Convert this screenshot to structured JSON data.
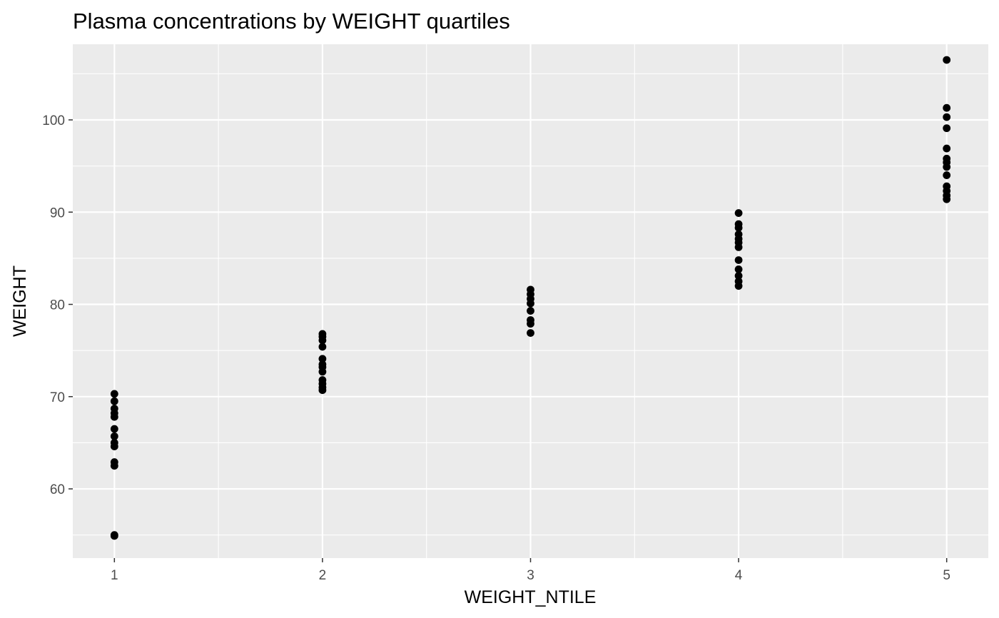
{
  "chart_data": {
    "type": "scatter",
    "title": "Plasma concentrations by WEIGHT quartiles",
    "xlabel": "WEIGHT_NTILE",
    "ylabel": "WEIGHT",
    "xlim": [
      0.8,
      5.2
    ],
    "ylim": [
      52.5,
      108.2
    ],
    "x_ticks": [
      1,
      2,
      3,
      4,
      5
    ],
    "x_tick_labels": [
      "1",
      "2",
      "3",
      "4",
      "5"
    ],
    "y_ticks": [
      60,
      70,
      80,
      90,
      100
    ],
    "y_tick_labels": [
      "60",
      "70",
      "80",
      "90",
      "100"
    ],
    "grid": true,
    "legend": "none",
    "colors": {
      "panel": "#ebebeb",
      "grid": "#ffffff",
      "point": "#000000"
    },
    "points": [
      {
        "x": 1,
        "y": 54.9
      },
      {
        "x": 1,
        "y": 55.0
      },
      {
        "x": 1,
        "y": 62.5
      },
      {
        "x": 1,
        "y": 62.9
      },
      {
        "x": 1,
        "y": 64.6
      },
      {
        "x": 1,
        "y": 65.0
      },
      {
        "x": 1,
        "y": 65.7
      },
      {
        "x": 1,
        "y": 66.5
      },
      {
        "x": 1,
        "y": 67.8
      },
      {
        "x": 1,
        "y": 68.2
      },
      {
        "x": 1,
        "y": 68.7
      },
      {
        "x": 1,
        "y": 69.5
      },
      {
        "x": 1,
        "y": 70.3
      },
      {
        "x": 2,
        "y": 70.7
      },
      {
        "x": 2,
        "y": 71.0
      },
      {
        "x": 2,
        "y": 71.4
      },
      {
        "x": 2,
        "y": 71.8
      },
      {
        "x": 2,
        "y": 72.7
      },
      {
        "x": 2,
        "y": 73.2
      },
      {
        "x": 2,
        "y": 73.5
      },
      {
        "x": 2,
        "y": 74.1
      },
      {
        "x": 2,
        "y": 75.4
      },
      {
        "x": 2,
        "y": 76.1
      },
      {
        "x": 2,
        "y": 76.5
      },
      {
        "x": 2,
        "y": 76.8
      },
      {
        "x": 3,
        "y": 76.9
      },
      {
        "x": 3,
        "y": 77.9
      },
      {
        "x": 3,
        "y": 78.3
      },
      {
        "x": 3,
        "y": 79.3
      },
      {
        "x": 3,
        "y": 80.1
      },
      {
        "x": 3,
        "y": 80.6
      },
      {
        "x": 3,
        "y": 81.1
      },
      {
        "x": 3,
        "y": 81.6
      },
      {
        "x": 4,
        "y": 82.0
      },
      {
        "x": 4,
        "y": 82.5
      },
      {
        "x": 4,
        "y": 83.1
      },
      {
        "x": 4,
        "y": 83.8
      },
      {
        "x": 4,
        "y": 84.8
      },
      {
        "x": 4,
        "y": 86.2
      },
      {
        "x": 4,
        "y": 86.7
      },
      {
        "x": 4,
        "y": 87.1
      },
      {
        "x": 4,
        "y": 87.6
      },
      {
        "x": 4,
        "y": 88.3
      },
      {
        "x": 4,
        "y": 88.7
      },
      {
        "x": 4,
        "y": 89.9
      },
      {
        "x": 5,
        "y": 91.4
      },
      {
        "x": 5,
        "y": 91.8
      },
      {
        "x": 5,
        "y": 92.3
      },
      {
        "x": 5,
        "y": 92.8
      },
      {
        "x": 5,
        "y": 94.0
      },
      {
        "x": 5,
        "y": 94.9
      },
      {
        "x": 5,
        "y": 95.4
      },
      {
        "x": 5,
        "y": 95.8
      },
      {
        "x": 5,
        "y": 96.9
      },
      {
        "x": 5,
        "y": 99.1
      },
      {
        "x": 5,
        "y": 100.3
      },
      {
        "x": 5,
        "y": 101.3
      },
      {
        "x": 5,
        "y": 106.5
      }
    ]
  }
}
